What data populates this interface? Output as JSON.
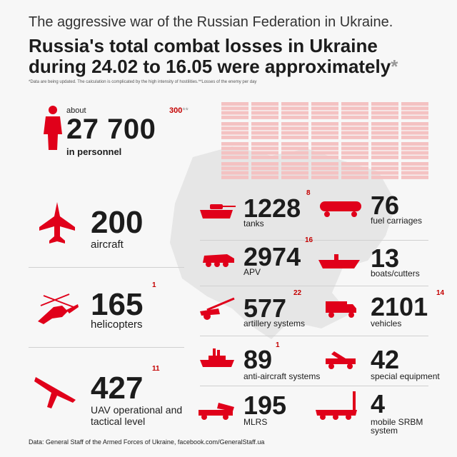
{
  "colors": {
    "flag_blue": "#0a70c9",
    "flag_yellow": "#ffd500",
    "accent_red": "#e0001a",
    "map_gray": "#e6e6e6",
    "grid_pink": "#f4c2c2"
  },
  "header": {
    "subtitle": "The aggressive war of the Russian Federation in Ukraine.",
    "title_line1": "Russia's total combat losses in Ukraine",
    "title_line2": "during 24.02 to 16.05 were approximately",
    "title_asterisk": "*",
    "note": "*Data are being updated. The calculation is complicated by the high intensity of hostilities.**Losses of the enemy per day"
  },
  "personnel": {
    "icon": "person-icon",
    "about": "about",
    "value": "27 700",
    "label": "in personnel",
    "day": "300",
    "day_mark": "**"
  },
  "left_items": [
    {
      "icon": "fighter-jet-icon",
      "value": "200",
      "label": "aircraft",
      "day": ""
    },
    {
      "icon": "helicopter-icon",
      "value": "165",
      "label": "helicopters",
      "day": "1"
    },
    {
      "icon": "drone-icon",
      "value": "427",
      "label": "UAV operational and",
      "label2": "tactical level",
      "day": "11"
    }
  ],
  "mid_items": [
    {
      "icon": "tank-icon",
      "value": "1228",
      "label": "tanks",
      "day": "8"
    },
    {
      "icon": "apc-icon",
      "value": "2974",
      "label": "APV",
      "day": "16"
    },
    {
      "icon": "artillery-icon",
      "value": "577",
      "label": "artillery systems",
      "day": "22"
    },
    {
      "icon": "anti-aircraft-icon",
      "value": "89",
      "label": "anti-aircraft systems",
      "day": "1"
    },
    {
      "icon": "mlrs-icon",
      "value": "195",
      "label": "MLRS",
      "day": ""
    }
  ],
  "right_items": [
    {
      "icon": "fuel-tank-car-icon",
      "value": "76",
      "label": "fuel carriages",
      "day": ""
    },
    {
      "icon": "boat-icon",
      "value": "13",
      "label": "boats/cutters",
      "day": ""
    },
    {
      "icon": "truck-icon",
      "value": "2101",
      "label": "vehicles",
      "day": "14"
    },
    {
      "icon": "special-equipment-icon",
      "value": "42",
      "label": "special equipment",
      "day": ""
    },
    {
      "icon": "srbm-launcher-icon",
      "value": "4",
      "label": "mobile SRBM",
      "label2": "system",
      "day": ""
    }
  ],
  "footer": {
    "source": "Data: General Staff of the Armed Forces of Ukraine, facebook.com/GeneralStaff.ua"
  }
}
